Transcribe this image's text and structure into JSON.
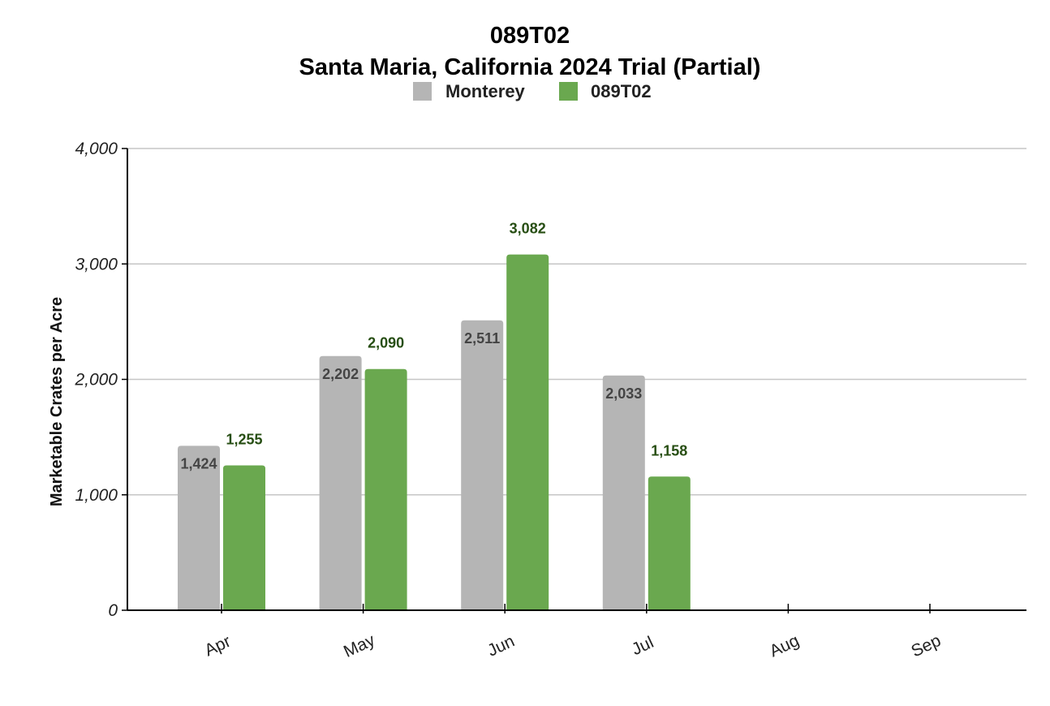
{
  "chart_data": {
    "type": "bar",
    "title": "089T02",
    "subtitle": "Santa Maria, California 2024 Trial (Partial)",
    "ylabel": "Marketable Crates per Acre",
    "xlabel": "",
    "ylim": [
      0,
      4000
    ],
    "yticks": [
      "0",
      "1,000",
      "2,000",
      "3,000",
      "4,000"
    ],
    "ytick_values": [
      0,
      1000,
      2000,
      3000,
      4000
    ],
    "grid": true,
    "legend_position": "top",
    "categories": [
      "Apr",
      "May",
      "Jun",
      "Jul",
      "Aug",
      "Sep"
    ],
    "series": [
      {
        "name": "Monterey",
        "color": "#b5b5b5",
        "label_color": "#444444",
        "values": [
          1424,
          2202,
          2511,
          2033,
          null,
          null
        ],
        "labels": [
          "1,424",
          "2,202",
          "2,511",
          "2,033",
          null,
          null
        ]
      },
      {
        "name": "089T02",
        "color": "#6aa84f",
        "label_color": "#274e13",
        "values": [
          1255,
          2090,
          3082,
          1158,
          null,
          null
        ],
        "labels": [
          "1,255",
          "2,090",
          "3,082",
          "1,158",
          null,
          null
        ]
      }
    ]
  }
}
